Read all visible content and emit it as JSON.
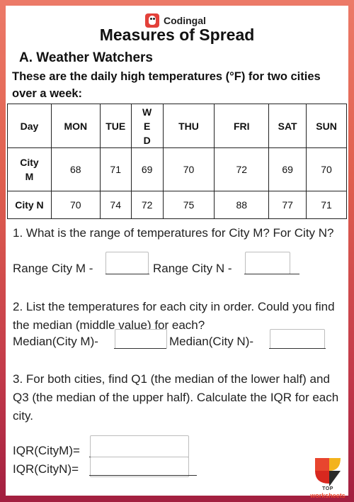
{
  "brand": {
    "name": "Codingal"
  },
  "title": "Measures of Spread",
  "section_title": "A. Weather Watchers",
  "intro": "These are the daily high temperatures (°F) for two cities over a week:",
  "table": {
    "header": [
      "Day",
      "MON",
      "TUE",
      "WE D",
      "THU",
      "FRI",
      "SAT",
      "SUN"
    ],
    "rows": [
      {
        "label": "City M",
        "values": [
          "68",
          "71",
          "69",
          "70",
          "72",
          "69",
          "70"
        ]
      },
      {
        "label": "City N",
        "values": [
          "70",
          "74",
          "72",
          "75",
          "88",
          "77",
          "71"
        ]
      }
    ]
  },
  "questions": {
    "q1": {
      "text": "1. What is the range of temperatures for City M? For City N?",
      "label_m": "Range City M -",
      "label_n": "Range City N -"
    },
    "q2": {
      "text": "2. List the temperatures for each city in order. Could you find the median (middle value) for each?",
      "label_m": "Median(City M)-",
      "label_n": "Median(City N)-"
    },
    "q3": {
      "text": "3. For both cities, find Q1 (the median of the lower half) and Q3 (the median of the upper half). Calculate the IQR for each city.",
      "label_m": "IQR(CityM)=",
      "label_n": "IQR(CityN)="
    }
  },
  "footer": {
    "logo_top": "TOP",
    "logo_worksheets": "worksheets"
  },
  "colors": {
    "frame_top": "#ec7a68",
    "frame_bottom": "#a21f40",
    "brand_red": "#e3413a",
    "logo_orange": "#e8452e"
  },
  "icons": {
    "brand": "codingal-logo-icon",
    "footer": "top-worksheets-logo-icon"
  }
}
